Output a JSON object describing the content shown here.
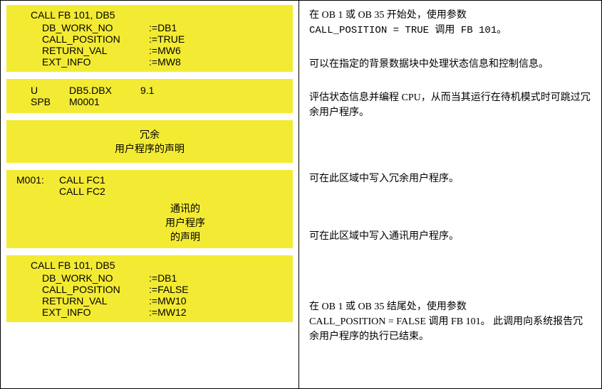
{
  "colors": {
    "highlight": "#f3eb33",
    "border": "#000000",
    "bg": "#ffffff"
  },
  "left": {
    "block1": {
      "call": "CALL FB 101, DB5",
      "params": [
        {
          "name": "DB_WORK_NO",
          "val": ":=DB1"
        },
        {
          "name": "CALL_POSITION",
          "val": ":=TRUE"
        },
        {
          "name": "RETURN_VAL",
          "val": ":=MW6"
        },
        {
          "name": "EXT_INFO",
          "val": ":=MW8"
        }
      ]
    },
    "block2": {
      "rows": [
        {
          "op": "U",
          "a1": "DB5.DBX",
          "a2": "9.1"
        },
        {
          "op": "SPB",
          "a1": "M0001",
          "a2": ""
        }
      ]
    },
    "block3": {
      "line1": "冗余",
      "line2": "用户程序的声明"
    },
    "block4": {
      "label": "M001:",
      "calls": [
        "CALL FC1",
        "CALL FC2"
      ],
      "decl": [
        "通讯的",
        "用户程序",
        "的声明"
      ]
    },
    "block5": {
      "call": "CALL FB 101, DB5",
      "params": [
        {
          "name": "DB_WORK_NO",
          "val": ":=DB1"
        },
        {
          "name": "CALL_POSITION",
          "val": ":=FALSE"
        },
        {
          "name": "RETURN_VAL",
          "val": ":=MW10"
        },
        {
          "name": "EXT_INFO",
          "val": ":=MW12"
        }
      ]
    }
  },
  "right": {
    "p1a": "在 OB 1 或 OB 35 开始处，使用参数",
    "p1b": "CALL_POSITION = TRUE 调用 FB 101。",
    "p2": "可以在指定的背景数据块中处理状态信息和控制信息。",
    "p3": "评估状态信息并编程 CPU，从而当其运行在待机模式时可跳过冗余用户程序。",
    "p4": "可在此区域中写入冗余用户程序。",
    "p5": "可在此区域中写入通讯用户程序。",
    "p6a": "在 OB 1 或 OB 35 结尾处，使用参数",
    "p6b": "CALL_POSITION = FALSE 调用 FB 101。  此调用向系统报告冗余用户程序的执行已结束。"
  }
}
